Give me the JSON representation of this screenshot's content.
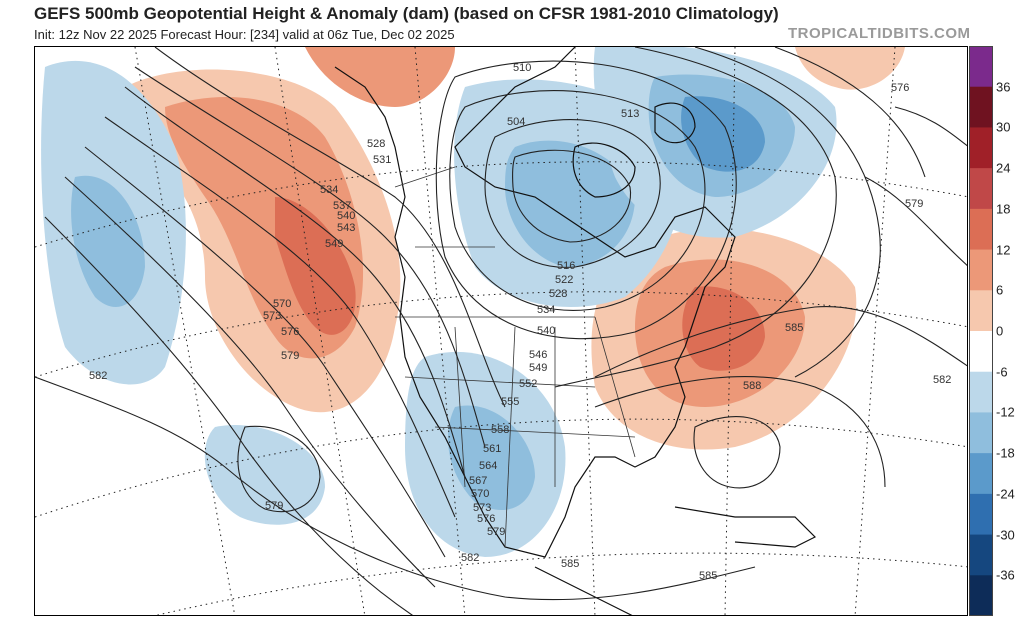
{
  "header": {
    "title": "GEFS 500mb Geopotential Height & Anomaly (dam) (based on CFSR 1981-2010 Climatology)",
    "subtitle": "Init: 12z Nov 22 2025   Forecast Hour: [234]   valid at 06z Tue, Dec 02 2025",
    "brand": "TROPICALTIDBITS.COM"
  },
  "colorbar": {
    "labels": [
      "36",
      "30",
      "24",
      "18",
      "12",
      "6",
      "0",
      "-6",
      "-12",
      "-18",
      "-24",
      "-30",
      "-36"
    ],
    "colors": [
      "#7b2a8c",
      "#6f1220",
      "#a02028",
      "#c04848",
      "#dc6e55",
      "#ec9878",
      "#f6c8ae",
      "#ffffff",
      "#bcd8ea",
      "#8fbedd",
      "#5b9acb",
      "#2f6fb0",
      "#15477f",
      "#0d2c58"
    ]
  },
  "contour_labels": [
    "510",
    "504",
    "513",
    "528",
    "531",
    "534",
    "537",
    "540",
    "543",
    "549",
    "570",
    "573",
    "576",
    "579",
    "582",
    "516",
    "522",
    "528",
    "534",
    "540",
    "546",
    "549",
    "552",
    "555",
    "558",
    "561",
    "564",
    "567",
    "570",
    "573",
    "576",
    "579",
    "582",
    "585",
    "585",
    "585",
    "588",
    "576",
    "579",
    "582",
    "579"
  ]
}
